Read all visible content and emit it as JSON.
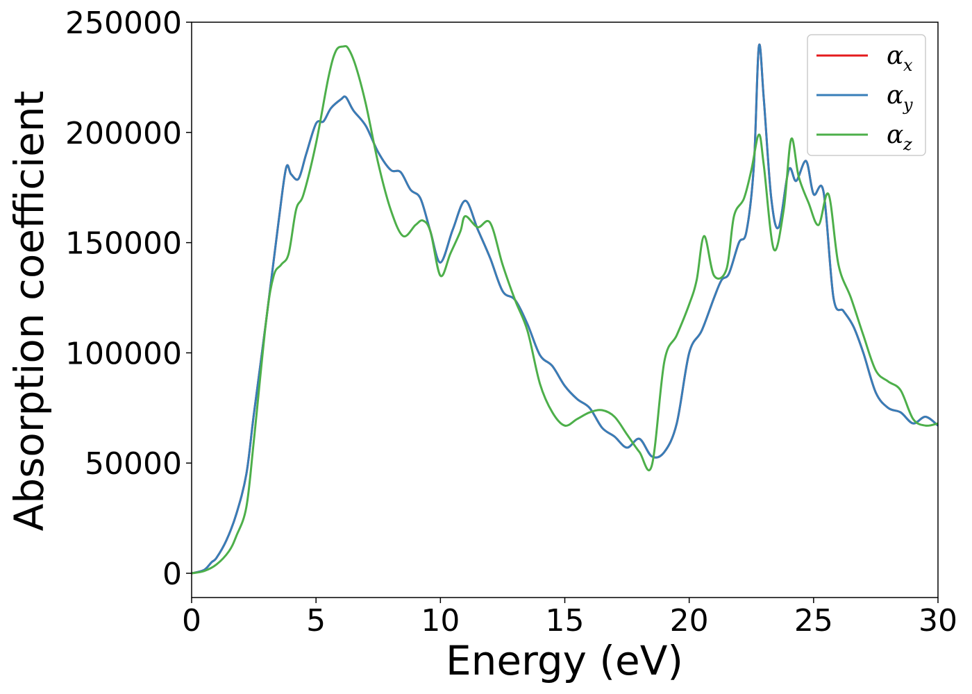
{
  "chart_data": {
    "type": "line",
    "xlabel": "Energy (eV)",
    "ylabel": "Absorption coefficient",
    "xlim": [
      0,
      30
    ],
    "ylim": [
      -11000,
      250000
    ],
    "xticks": [
      "0",
      "5",
      "10",
      "15",
      "20",
      "25",
      "30"
    ],
    "yticks": [
      "0",
      "50000",
      "100000",
      "150000",
      "200000",
      "250000"
    ],
    "grid": false,
    "legend_position": "top-right",
    "legend": [
      {
        "symbol": "α",
        "sub": "x",
        "color": "#e41a1c"
      },
      {
        "symbol": "α",
        "sub": "y",
        "color": "#377eb8"
      },
      {
        "symbol": "α",
        "sub": "z",
        "color": "#4daf4a"
      }
    ],
    "series": [
      {
        "name": "αx",
        "color": "#e41a1c",
        "x": [
          0,
          0.5,
          0.8,
          1.0,
          1.4,
          1.8,
          2.2,
          2.5,
          3.0,
          3.5,
          3.8,
          4.0,
          4.3,
          4.6,
          5.0,
          5.3,
          5.6,
          6.0,
          6.2,
          6.5,
          7.0,
          7.5,
          8.0,
          8.4,
          8.8,
          9.2,
          9.6,
          10.0,
          10.5,
          11.0,
          11.5,
          12.0,
          12.5,
          13.0,
          13.5,
          14.0,
          14.5,
          15.0,
          15.5,
          16.0,
          16.5,
          17.0,
          17.5,
          18.0,
          18.5,
          19.0,
          19.5,
          20.0,
          20.5,
          21.0,
          21.3,
          21.6,
          22.0,
          22.3,
          22.6,
          22.8,
          23.0,
          23.3,
          23.6,
          24.0,
          24.3,
          24.7,
          25.0,
          25.4,
          25.8,
          26.2,
          26.6,
          27.0,
          27.5,
          28.0,
          28.5,
          29.0,
          29.5,
          30.0
        ],
        "values": [
          0,
          1500,
          5000,
          7000,
          15000,
          27000,
          45000,
          72000,
          115000,
          160000,
          184000,
          181000,
          179000,
          190000,
          204000,
          205000,
          211000,
          215000,
          216000,
          210000,
          203000,
          191000,
          183000,
          182000,
          174000,
          170000,
          155000,
          141000,
          156000,
          169000,
          156000,
          143000,
          128000,
          124000,
          113000,
          99000,
          94000,
          85000,
          79000,
          75000,
          66000,
          62000,
          57000,
          61000,
          53000,
          55000,
          68000,
          100000,
          110000,
          125000,
          133000,
          136000,
          150000,
          155000,
          185000,
          239000,
          215000,
          170000,
          157000,
          183000,
          178000,
          187000,
          172000,
          173000,
          125000,
          119000,
          112000,
          100000,
          82000,
          75000,
          73000,
          68000,
          71000,
          67000
        ]
      },
      {
        "name": "αy",
        "color": "#377eb8",
        "x": [
          0,
          0.5,
          0.8,
          1.0,
          1.4,
          1.8,
          2.2,
          2.5,
          3.0,
          3.5,
          3.8,
          4.0,
          4.3,
          4.6,
          5.0,
          5.3,
          5.6,
          6.0,
          6.2,
          6.5,
          7.0,
          7.5,
          8.0,
          8.4,
          8.8,
          9.2,
          9.6,
          10.0,
          10.5,
          11.0,
          11.5,
          12.0,
          12.5,
          13.0,
          13.5,
          14.0,
          14.5,
          15.0,
          15.5,
          16.0,
          16.5,
          17.0,
          17.5,
          18.0,
          18.5,
          19.0,
          19.5,
          20.0,
          20.5,
          21.0,
          21.3,
          21.6,
          22.0,
          22.3,
          22.6,
          22.8,
          23.0,
          23.3,
          23.6,
          24.0,
          24.3,
          24.7,
          25.0,
          25.4,
          25.8,
          26.2,
          26.6,
          27.0,
          27.5,
          28.0,
          28.5,
          29.0,
          29.5,
          30.0
        ],
        "values": [
          0,
          1500,
          5000,
          7000,
          15000,
          27000,
          45000,
          72000,
          115000,
          160000,
          184000,
          181000,
          179000,
          190000,
          204000,
          205000,
          211000,
          215000,
          216000,
          210000,
          203000,
          191000,
          183000,
          182000,
          174000,
          170000,
          155000,
          141000,
          156000,
          169000,
          156000,
          143000,
          128000,
          124000,
          113000,
          99000,
          94000,
          85000,
          79000,
          75000,
          66000,
          62000,
          57000,
          61000,
          53000,
          55000,
          68000,
          100000,
          110000,
          125000,
          133000,
          136000,
          150000,
          155000,
          185000,
          239000,
          215000,
          170000,
          157000,
          183000,
          178000,
          187000,
          172000,
          173000,
          125000,
          119000,
          112000,
          100000,
          82000,
          75000,
          73000,
          68000,
          71000,
          67000
        ]
      },
      {
        "name": "αz",
        "color": "#4daf4a",
        "x": [
          0,
          0.5,
          1.0,
          1.5,
          1.8,
          2.2,
          2.5,
          3.0,
          3.3,
          3.6,
          3.9,
          4.2,
          4.5,
          5.0,
          5.5,
          5.8,
          6.1,
          6.3,
          6.6,
          7.0,
          7.5,
          8.0,
          8.5,
          9.0,
          9.3,
          9.6,
          10.0,
          10.4,
          10.8,
          11.0,
          11.5,
          12.0,
          12.5,
          13.0,
          13.5,
          14.0,
          14.5,
          15.0,
          15.5,
          16.0,
          16.5,
          17.0,
          17.5,
          18.0,
          18.5,
          19.0,
          19.5,
          20.0,
          20.3,
          20.6,
          21.0,
          21.5,
          21.8,
          22.2,
          22.5,
          22.8,
          23.0,
          23.4,
          23.8,
          24.1,
          24.4,
          24.8,
          25.2,
          25.6,
          26.0,
          26.5,
          27.0,
          27.5,
          28.0,
          28.5,
          29.0,
          29.5,
          30.0
        ],
        "values": [
          0,
          1000,
          4000,
          10000,
          17000,
          30000,
          60000,
          115000,
          135000,
          140000,
          145000,
          165000,
          172000,
          195000,
          225000,
          237000,
          239000,
          238000,
          230000,
          213000,
          186000,
          165000,
          153000,
          158000,
          160000,
          155000,
          135000,
          145000,
          155000,
          162000,
          157000,
          159000,
          140000,
          124000,
          110000,
          86000,
          73000,
          67000,
          70000,
          73000,
          74000,
          71000,
          63000,
          55000,
          49000,
          96000,
          108000,
          122000,
          133000,
          153000,
          135000,
          138000,
          162000,
          170000,
          183000,
          199000,
          185000,
          147000,
          165000,
          197000,
          180000,
          168000,
          158000,
          172000,
          140000,
          125000,
          108000,
          92000,
          87000,
          83000,
          70000,
          67000,
          68000
        ]
      }
    ]
  }
}
